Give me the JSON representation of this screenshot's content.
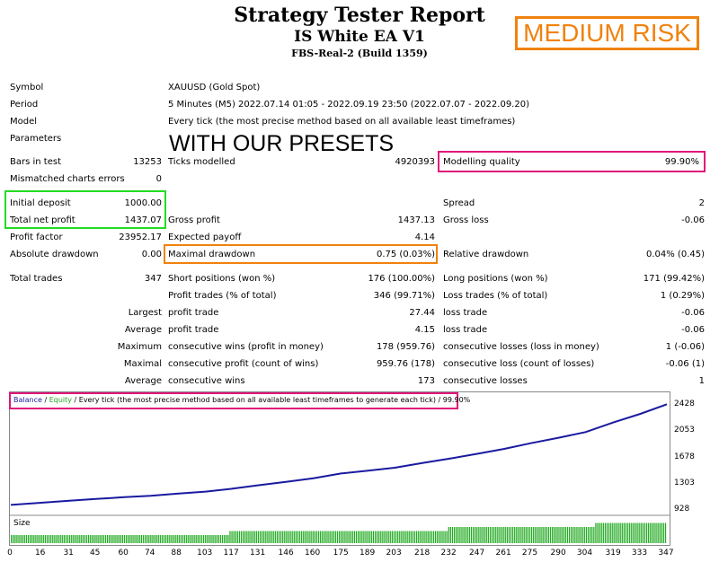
{
  "header": {
    "title": "Strategy Tester Report",
    "ea_name": "IS White EA V1",
    "server": "FBS-Real-2 (Build 1359)",
    "risk_badge": "MEDIUM RISK",
    "presets_note": "WITH OUR PRESETS"
  },
  "info": {
    "symbol_label": "Symbol",
    "symbol_value": "XAUUSD (Gold Spot)",
    "period_label": "Period",
    "period_value": "5 Minutes (M5) 2022.07.14 01:05 - 2022.09.19 23:50 (2022.07.07 - 2022.09.20)",
    "model_label": "Model",
    "model_value": "Every tick (the most precise method based on all available least timeframes)",
    "parameters_label": "Parameters"
  },
  "stats": {
    "bars_label": "Bars in test",
    "bars_value": "13253",
    "ticks_label": "Ticks modelled",
    "ticks_value": "4920393",
    "quality_label": "Modelling quality",
    "quality_value": "99.90%",
    "mismatch_label": "Mismatched charts errors",
    "mismatch_value": "0",
    "deposit_label": "Initial deposit",
    "deposit_value": "1000.00",
    "spread_label": "Spread",
    "spread_value": "2",
    "netprofit_label": "Total net profit",
    "netprofit_value": "1437.07",
    "grossprofit_label": "Gross profit",
    "grossprofit_value": "1437.13",
    "grossloss_label": "Gross loss",
    "grossloss_value": "-0.06",
    "pf_label": "Profit factor",
    "pf_value": "23952.17",
    "payoff_label": "Expected payoff",
    "payoff_value": "4.14",
    "absdd_label": "Absolute drawdown",
    "absdd_value": "0.00",
    "maxdd_label": "Maximal drawdown",
    "maxdd_value": "0.75 (0.03%)",
    "reldd_label": "Relative drawdown",
    "reldd_value": "0.04% (0.45)",
    "trades_label": "Total trades",
    "trades_value": "347",
    "short_label": "Short positions (won %)",
    "short_value": "176 (100.00%)",
    "long_label": "Long positions (won %)",
    "long_value": "171 (99.42%)",
    "ptrades_label": "Profit trades (% of total)",
    "ptrades_value": "346 (99.71%)",
    "ltrades_label": "Loss trades (% of total)",
    "ltrades_value": "1 (0.29%)",
    "largest_label": "Largest",
    "largest_profit_label": "profit trade",
    "largest_profit_value": "27.44",
    "largest_loss_label": "loss trade",
    "largest_loss_value": "-0.06",
    "average_label": "Average",
    "average_profit_label": "profit trade",
    "average_profit_value": "4.15",
    "average_loss_label": "loss trade",
    "average_loss_value": "-0.06",
    "maximum_label": "Maximum",
    "max_wins_label": "consecutive wins (profit in money)",
    "max_wins_value": "178 (959.76)",
    "max_losses_label": "consecutive losses (loss in money)",
    "max_losses_value": "1 (-0.06)",
    "maximal_label": "Maximal",
    "maximal_profit_label": "consecutive profit (count of wins)",
    "maximal_profit_value": "959.76 (178)",
    "maximal_loss_label": "consecutive loss (count of losses)",
    "maximal_loss_value": "-0.06 (1)",
    "avg_cons_label": "Average",
    "avg_wins_label": "consecutive wins",
    "avg_wins_value": "173",
    "avg_losses_label": "consecutive losses",
    "avg_losses_value": "1"
  },
  "chart_legend": {
    "balance": "Balance",
    "sep1": " / ",
    "equity": "Equity",
    "rest": " / Every tick (the most precise method based on all available least timeframes to generate each tick)",
    "sep2": " / ",
    "quality": "99.90%",
    "size_label": "Size"
  },
  "colors": {
    "balance": "#1a1aa0",
    "equity": "#22aa22",
    "highlight_pink": "#e0157a",
    "highlight_green": "#22dd22",
    "highlight_orange": "#f0820f",
    "size_bars": "#22aa22"
  },
  "chart_data": {
    "type": "line",
    "series": [
      {
        "name": "Balance",
        "x": [
          0,
          16,
          31,
          45,
          60,
          74,
          88,
          103,
          117,
          131,
          146,
          160,
          175,
          189,
          203,
          218,
          232,
          247,
          261,
          275,
          290,
          304,
          319,
          333,
          347
        ],
        "values": [
          1000,
          1030,
          1060,
          1085,
          1110,
          1130,
          1160,
          1190,
          1230,
          1280,
          1330,
          1380,
          1450,
          1490,
          1530,
          1600,
          1660,
          1730,
          1800,
          1880,
          1960,
          2040,
          2180,
          2300,
          2437
        ]
      }
    ],
    "size_steps": [
      {
        "from": 0,
        "to": 116,
        "level": 0.3
      },
      {
        "from": 116,
        "to": 232,
        "level": 0.45
      },
      {
        "from": 232,
        "to": 310,
        "level": 0.6
      },
      {
        "from": 310,
        "to": 347,
        "level": 0.75
      }
    ],
    "x_ticks": [
      "0",
      "16",
      "31",
      "45",
      "60",
      "74",
      "88",
      "103",
      "117",
      "131",
      "146",
      "160",
      "175",
      "189",
      "203",
      "218",
      "232",
      "247",
      "261",
      "275",
      "290",
      "304",
      "319",
      "333",
      "347"
    ],
    "y_ticks": [
      "2428",
      "2053",
      "1678",
      "1303",
      "928"
    ],
    "ylim": [
      928,
      2428
    ],
    "xlim": [
      0,
      347
    ]
  }
}
